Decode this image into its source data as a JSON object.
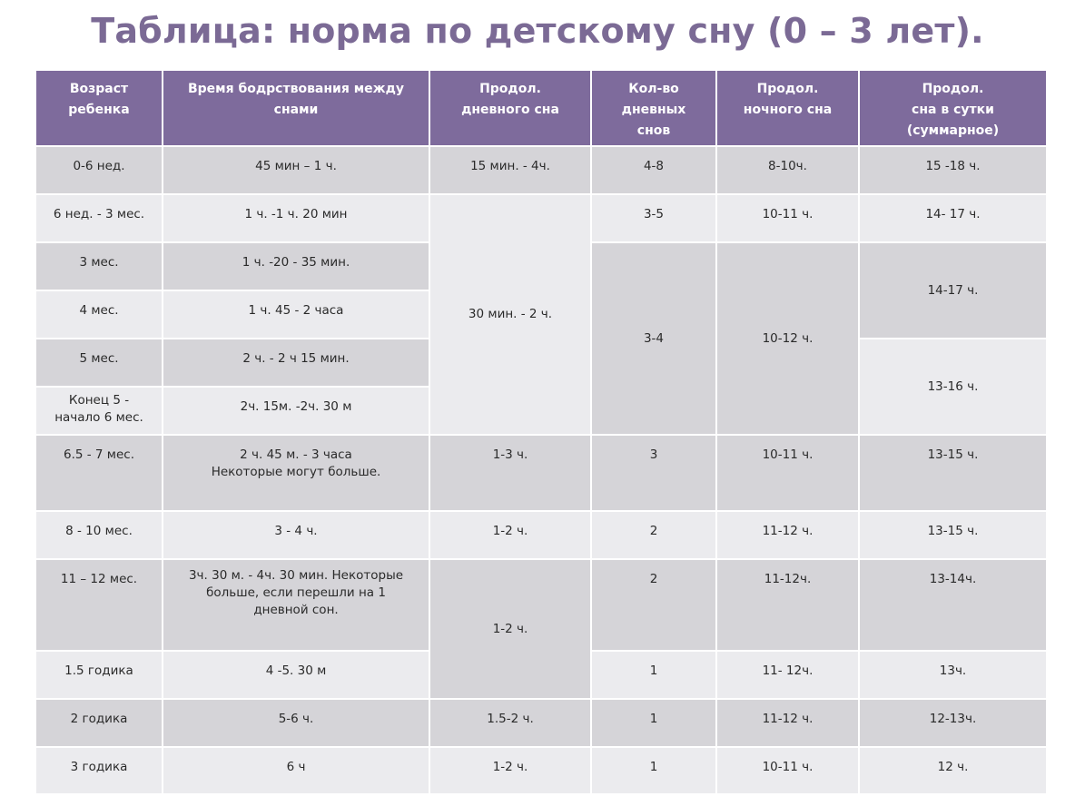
{
  "title": "Таблица: норма по детскому сну (0 – 3 лет).",
  "headers": {
    "age": "Возраст\nребенка",
    "wake": "Время  бодрствования  между\nснами",
    "day_sleep": "Продол.\nдневного сна",
    "naps": "Кол-во\nдневных\nснов",
    "night": "Продол.\nночного сна",
    "total": "Продол.\nсна в сутки\n(суммарное)"
  },
  "ages": [
    "0-6 нед.",
    "6 нед. - 3 мес.",
    "3 мес.",
    "4 мес.",
    "5 мес.",
    "Конец 5 -\nначало 6 мес.",
    "6.5 - 7 мес.",
    "8 - 10 мес.",
    "11 – 12 мес.",
    "1.5 годика",
    "2 годика",
    "3 годика"
  ],
  "wake": [
    "45 мин – 1 ч.",
    "1 ч. -1 ч. 20 мин",
    "1 ч. -20 - 35 мин.",
    "1 ч. 45 - 2 часа",
    "2 ч. - 2 ч 15 мин.",
    "2ч. 15м. -2ч. 30 м",
    "2 ч. 45 м. - 3 часа\nНекоторые могут  больше.",
    "3 - 4 ч.",
    "3ч. 30 м. - 4ч. 30 мин.  Некоторые\nбольше, если перешли на 1\nдневной сон.",
    "4 -5. 30 м",
    "5-6  ч.",
    "6 ч"
  ],
  "day_sleep": {
    "r0": "15 мин. -  4ч.",
    "r1to5": "30 мин. - 2 ч.",
    "r6": "1-3  ч.",
    "r7": "1-2 ч.",
    "r8to9": "1-2 ч.",
    "r10": "1.5-2 ч.",
    "r11": "1-2 ч."
  },
  "naps": {
    "r0": "4-8",
    "r1": "3-5",
    "r2to5": "3-4",
    "r6": "3",
    "r7": "2",
    "r8": "2",
    "r9": "1",
    "r10": "1",
    "r11": "1"
  },
  "night": {
    "r0": "8-10ч.",
    "r1": "10-11 ч.",
    "r2to5": "10-12 ч.",
    "r6": "10-11 ч.",
    "r7": "11-12 ч.",
    "r8": "11-12ч.",
    "r9": "11- 12ч.",
    "r10": "11-12 ч.",
    "r11": "10-11 ч."
  },
  "total": {
    "r0": "15 -18 ч.",
    "r1": "14- 17 ч.",
    "r2to3": "14-17 ч.",
    "r4to5": "13-16 ч.",
    "r6": "13-15 ч.",
    "r7": "13-15 ч.",
    "r8": "13-14ч.",
    "r9": "13ч.",
    "r10": "12-13ч.",
    "r11": "12 ч."
  },
  "colors": {
    "title": "#7b6a95",
    "header_bg": "#7e6b9c",
    "row_dark": "#d5d4d8",
    "row_light": "#ebebee"
  }
}
